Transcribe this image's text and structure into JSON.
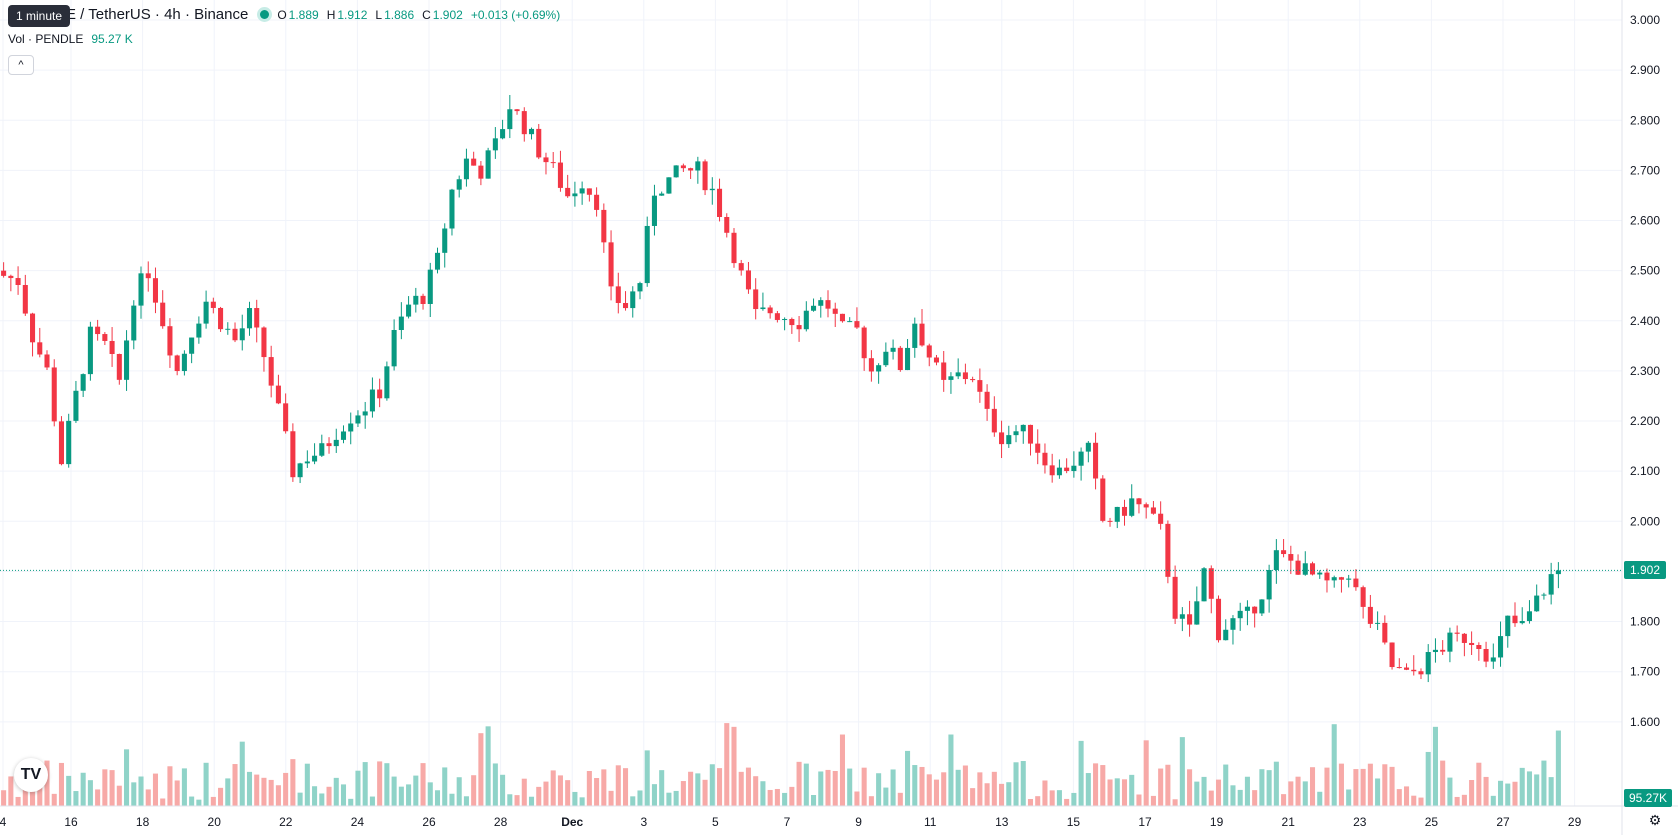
{
  "header": {
    "symbol_title": "E / TetherUS · 4h · Binance",
    "tooltip": "1 minute",
    "ohlc": {
      "o_label": "O",
      "o": "1.889",
      "h_label": "H",
      "h": "1.912",
      "l_label": "L",
      "l": "1.886",
      "c_label": "C",
      "c": "1.902",
      "change": "+0.013 (+0.69%)"
    }
  },
  "volume_legend": {
    "label": "Vol · PENDLE",
    "value": "95.27 K"
  },
  "collapse_glyph": "^",
  "last_price_badge": "1.902",
  "last_volume_badge": "95.27K",
  "logo_text": "TV",
  "settings_glyph": "⚙",
  "colors": {
    "up": "#089981",
    "down": "#f23645",
    "up_vol": "#8fd3c8",
    "down_vol": "#f7a9a7",
    "grid": "#f0f3fa",
    "text": "#131722"
  },
  "chart_data": {
    "type": "candlestick",
    "interval": "4h",
    "y_axis_ticks": [
      "3.000",
      "2.900",
      "2.800",
      "2.700",
      "2.600",
      "2.500",
      "2.400",
      "2.300",
      "2.200",
      "2.100",
      "2.000",
      "1.900",
      "1.800",
      "1.700",
      "1.600"
    ],
    "ylim": [
      1.55,
      3.04
    ],
    "x_axis_ticks": [
      "4",
      "16",
      "18",
      "20",
      "22",
      "24",
      "26",
      "28",
      "Dec",
      "3",
      "5",
      "7",
      "9",
      "11",
      "13",
      "15",
      "17",
      "19",
      "21",
      "23",
      "25",
      "27",
      "29"
    ],
    "last_price": 1.902,
    "anchors": [
      [
        0,
        2.49
      ],
      [
        2,
        2.48
      ],
      [
        4,
        2.37
      ],
      [
        6,
        2.3
      ],
      [
        8,
        2.12
      ],
      [
        10,
        2.25
      ],
      [
        12,
        2.37
      ],
      [
        14,
        2.35
      ],
      [
        16,
        2.28
      ],
      [
        18,
        2.45
      ],
      [
        20,
        2.5
      ],
      [
        22,
        2.4
      ],
      [
        24,
        2.3
      ],
      [
        26,
        2.38
      ],
      [
        28,
        2.44
      ],
      [
        30,
        2.4
      ],
      [
        32,
        2.36
      ],
      [
        34,
        2.41
      ],
      [
        36,
        2.33
      ],
      [
        38,
        2.22
      ],
      [
        40,
        2.1
      ],
      [
        42,
        2.13
      ],
      [
        44,
        2.14
      ],
      [
        46,
        2.18
      ],
      [
        48,
        2.21
      ],
      [
        50,
        2.23
      ],
      [
        52,
        2.26
      ],
      [
        54,
        2.37
      ],
      [
        56,
        2.43
      ],
      [
        58,
        2.45
      ],
      [
        60,
        2.52
      ],
      [
        62,
        2.66
      ],
      [
        64,
        2.72
      ],
      [
        66,
        2.7
      ],
      [
        68,
        2.75
      ],
      [
        70,
        2.83
      ],
      [
        72,
        2.79
      ],
      [
        74,
        2.74
      ],
      [
        76,
        2.7
      ],
      [
        78,
        2.65
      ],
      [
        80,
        2.68
      ],
      [
        82,
        2.64
      ],
      [
        84,
        2.45
      ],
      [
        86,
        2.43
      ],
      [
        88,
        2.48
      ],
      [
        90,
        2.66
      ],
      [
        92,
        2.68
      ],
      [
        94,
        2.7
      ],
      [
        96,
        2.7
      ],
      [
        98,
        2.66
      ],
      [
        100,
        2.58
      ],
      [
        102,
        2.49
      ],
      [
        104,
        2.41
      ],
      [
        106,
        2.42
      ],
      [
        108,
        2.41
      ],
      [
        110,
        2.4
      ],
      [
        112,
        2.44
      ],
      [
        114,
        2.43
      ],
      [
        116,
        2.38
      ],
      [
        118,
        2.38
      ],
      [
        120,
        2.3
      ],
      [
        122,
        2.35
      ],
      [
        124,
        2.31
      ],
      [
        126,
        2.4
      ],
      [
        128,
        2.33
      ],
      [
        130,
        2.27
      ],
      [
        132,
        2.29
      ],
      [
        134,
        2.29
      ],
      [
        136,
        2.21
      ],
      [
        138,
        2.17
      ],
      [
        140,
        2.18
      ],
      [
        142,
        2.17
      ],
      [
        144,
        2.12
      ],
      [
        146,
        2.1
      ],
      [
        148,
        2.12
      ],
      [
        150,
        2.14
      ],
      [
        152,
        2.0
      ],
      [
        154,
        2.01
      ],
      [
        156,
        2.04
      ],
      [
        158,
        2.02
      ],
      [
        160,
        1.98
      ],
      [
        162,
        1.82
      ],
      [
        164,
        1.78
      ],
      [
        166,
        1.9
      ],
      [
        168,
        1.78
      ],
      [
        170,
        1.8
      ],
      [
        172,
        1.81
      ],
      [
        174,
        1.86
      ],
      [
        176,
        1.93
      ],
      [
        178,
        1.92
      ],
      [
        180,
        1.9
      ],
      [
        182,
        1.88
      ],
      [
        184,
        1.87
      ],
      [
        186,
        1.9
      ],
      [
        188,
        1.82
      ],
      [
        190,
        1.78
      ],
      [
        192,
        1.71
      ],
      [
        194,
        1.69
      ],
      [
        196,
        1.71
      ],
      [
        198,
        1.74
      ],
      [
        200,
        1.76
      ],
      [
        202,
        1.77
      ],
      [
        204,
        1.76
      ],
      [
        206,
        1.72
      ],
      [
        208,
        1.8
      ],
      [
        210,
        1.79
      ],
      [
        212,
        1.84
      ],
      [
        214,
        1.89
      ],
      [
        215,
        1.902
      ]
    ],
    "volume_axis_label": "95.27K"
  }
}
